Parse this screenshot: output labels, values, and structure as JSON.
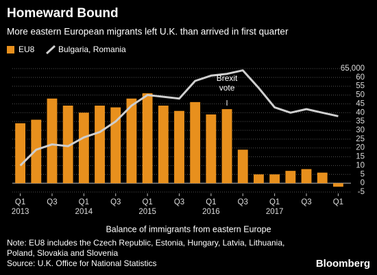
{
  "chart_data": {
    "type": "bar_line",
    "title": "Homeward Bound",
    "subtitle": "More eastern European migrants left U.K. than arrived in first quarter",
    "x_label": "Balance of immigrants from eastern Europe",
    "note": [
      "Note: EU8 includes the Czech Republic, Estonia, Hungary, Latvia, Lithuania,",
      "Poland, Slovakia and Slovenia"
    ],
    "source": "Source: U.K. Office for National Statistics",
    "brand": "Bloomberg",
    "annotation": {
      "text": [
        "Brexit",
        "vote"
      ],
      "index": 13
    },
    "categories": [
      "Q1",
      null,
      "Q3",
      null,
      "Q1",
      null,
      "Q3",
      null,
      "Q1",
      null,
      "Q3",
      null,
      "Q1",
      null,
      "Q3",
      null,
      "Q1",
      null,
      "Q3",
      null,
      "Q1"
    ],
    "x_years": [
      "2013",
      null,
      null,
      null,
      "2014",
      null,
      null,
      null,
      "2015",
      null,
      null,
      null,
      "2016",
      null,
      null,
      null,
      "2017",
      null,
      null,
      null,
      null
    ],
    "series": [
      {
        "name": "EU8",
        "color": "#e8901d",
        "kind": "bar",
        "values": [
          34,
          36,
          48,
          44,
          40,
          44,
          43,
          48,
          51,
          44,
          41,
          46,
          39,
          42,
          19,
          5,
          5,
          7,
          8,
          6,
          -2
        ]
      },
      {
        "name": "Bulgaria, Romania",
        "color": "#cfcfcf",
        "kind": "line",
        "values": [
          10,
          19,
          22,
          21,
          26,
          29,
          35,
          44,
          50,
          49,
          48,
          58,
          61,
          62,
          64,
          54,
          43,
          40,
          42,
          40,
          38
        ]
      }
    ],
    "ylim": [
      -5,
      65
    ],
    "yticks": [
      -5,
      0,
      5,
      10,
      15,
      20,
      25,
      30,
      35,
      40,
      45,
      50,
      55,
      60,
      {
        "value": 65,
        "label": "65,000"
      }
    ],
    "grid": true
  }
}
